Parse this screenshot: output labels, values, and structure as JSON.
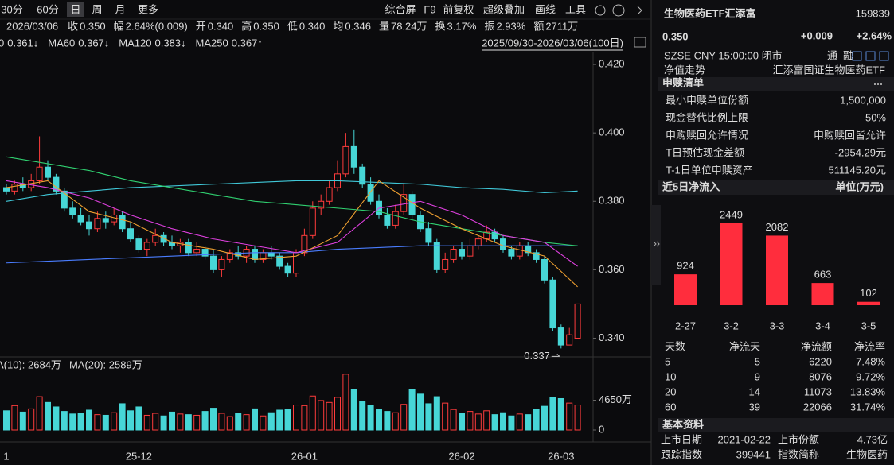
{
  "toolbar": {
    "tabs": [
      "30分",
      "60分",
      "日",
      "周",
      "月",
      "更多"
    ],
    "tools": [
      "综合屏",
      "F9",
      "前复权",
      "超级叠加",
      "画线",
      "工具"
    ]
  },
  "quote_line": {
    "date": "2026/03/06",
    "items": [
      {
        "label": "收",
        "value": "0.350",
        "color": "#ff3c3c"
      },
      {
        "label": "幅",
        "value": "2.64%(0.009)",
        "color": "#ff3c3c"
      },
      {
        "label": "开",
        "value": "0.340",
        "color": "#3fe07a"
      },
      {
        "label": "高",
        "value": "0.350",
        "color": "#ff3c3c"
      },
      {
        "label": "低",
        "value": "0.340",
        "color": "#3fe07a"
      },
      {
        "label": "均",
        "value": "0.346",
        "color": "#ff3c3c"
      },
      {
        "label": "量",
        "value": "78.24万",
        "color": "#e6e6e6"
      },
      {
        "label": "换",
        "value": "3.17%",
        "color": "#e6e6e6"
      },
      {
        "label": "振",
        "value": "2.93%",
        "color": "#e6e6e6"
      },
      {
        "label": "额",
        "value": "2711万",
        "color": "#e6e6e6"
      }
    ]
  },
  "ma_legend": [
    {
      "label": "0",
      "value": "0.361↓",
      "color": "#e040e0"
    },
    {
      "label": "MA60",
      "value": "0.367↓",
      "color": "#30d070"
    },
    {
      "label": "MA120",
      "value": "0.383↓",
      "color": "#40c8d8"
    },
    {
      "label": "MA250",
      "value": "0.367↑",
      "color": "#4a7dff"
    }
  ],
  "range_label": "2025/09/30-2026/03/06(100日)",
  "chart_data": [
    {
      "type": "candlestick",
      "categories": [
        "1",
        null,
        null,
        null,
        null,
        null,
        null,
        null,
        null,
        null,
        null,
        null,
        null,
        null,
        null,
        null,
        "25-12",
        null,
        null,
        null,
        null,
        null,
        null,
        null,
        null,
        null,
        null,
        null,
        null,
        null,
        null,
        null,
        null,
        null,
        null,
        null,
        "26-01",
        null,
        null,
        null,
        null,
        null,
        null,
        null,
        null,
        null,
        null,
        null,
        null,
        null,
        null,
        null,
        null,
        null,
        null,
        "26-02",
        null,
        null,
        null,
        null,
        null,
        null,
        null,
        null,
        null,
        null,
        null,
        "26-03",
        null,
        null
      ],
      "open": [
        0.384,
        0.383,
        0.385,
        0.384,
        0.386,
        0.39,
        0.387,
        0.383,
        0.378,
        0.376,
        0.374,
        0.372,
        0.375,
        0.374,
        0.376,
        0.372,
        0.369,
        0.366,
        0.368,
        0.37,
        0.368,
        0.367,
        0.368,
        0.365,
        0.366,
        0.364,
        0.36,
        0.363,
        0.365,
        0.364,
        0.366,
        0.363,
        0.365,
        0.364,
        0.361,
        0.359,
        0.365,
        0.37,
        0.378,
        0.38,
        0.384,
        0.388,
        0.396,
        0.39,
        0.385,
        0.38,
        0.376,
        0.373,
        0.377,
        0.382,
        0.376,
        0.372,
        0.368,
        0.36,
        0.363,
        0.366,
        0.364,
        0.367,
        0.369,
        0.371,
        0.369,
        0.366,
        0.364,
        0.367,
        0.365,
        0.363,
        0.357,
        0.343,
        0.338,
        0.34
      ],
      "high": [
        0.385,
        0.386,
        0.387,
        0.388,
        0.399,
        0.392,
        0.388,
        0.384,
        0.38,
        0.378,
        0.376,
        0.377,
        0.377,
        0.378,
        0.377,
        0.374,
        0.37,
        0.369,
        0.372,
        0.371,
        0.37,
        0.369,
        0.369,
        0.368,
        0.367,
        0.366,
        0.364,
        0.366,
        0.367,
        0.367,
        0.367,
        0.366,
        0.367,
        0.365,
        0.362,
        0.366,
        0.372,
        0.38,
        0.382,
        0.386,
        0.392,
        0.4,
        0.401,
        0.391,
        0.387,
        0.382,
        0.378,
        0.379,
        0.385,
        0.383,
        0.377,
        0.374,
        0.369,
        0.365,
        0.367,
        0.368,
        0.369,
        0.37,
        0.373,
        0.372,
        0.37,
        0.367,
        0.368,
        0.368,
        0.366,
        0.364,
        0.358,
        0.344,
        0.343,
        0.35
      ],
      "low": [
        0.382,
        0.382,
        0.383,
        0.383,
        0.385,
        0.386,
        0.382,
        0.377,
        0.375,
        0.373,
        0.37,
        0.371,
        0.372,
        0.373,
        0.371,
        0.368,
        0.365,
        0.364,
        0.367,
        0.367,
        0.366,
        0.365,
        0.364,
        0.364,
        0.363,
        0.359,
        0.358,
        0.362,
        0.363,
        0.362,
        0.362,
        0.362,
        0.363,
        0.36,
        0.358,
        0.358,
        0.364,
        0.369,
        0.376,
        0.379,
        0.383,
        0.387,
        0.388,
        0.384,
        0.379,
        0.375,
        0.372,
        0.372,
        0.376,
        0.375,
        0.371,
        0.367,
        0.359,
        0.359,
        0.362,
        0.363,
        0.363,
        0.366,
        0.368,
        0.368,
        0.365,
        0.363,
        0.363,
        0.364,
        0.362,
        0.356,
        0.342,
        0.337,
        0.338,
        0.34
      ],
      "close": [
        0.383,
        0.385,
        0.384,
        0.386,
        0.39,
        0.387,
        0.383,
        0.378,
        0.376,
        0.374,
        0.372,
        0.375,
        0.374,
        0.376,
        0.372,
        0.369,
        0.366,
        0.368,
        0.37,
        0.368,
        0.367,
        0.368,
        0.365,
        0.366,
        0.364,
        0.36,
        0.363,
        0.365,
        0.364,
        0.366,
        0.363,
        0.365,
        0.364,
        0.361,
        0.359,
        0.365,
        0.37,
        0.378,
        0.38,
        0.384,
        0.388,
        0.396,
        0.39,
        0.385,
        0.38,
        0.376,
        0.373,
        0.377,
        0.382,
        0.376,
        0.372,
        0.368,
        0.36,
        0.363,
        0.366,
        0.364,
        0.367,
        0.369,
        0.371,
        0.369,
        0.366,
        0.364,
        0.367,
        0.365,
        0.363,
        0.357,
        0.343,
        0.338,
        0.341,
        0.35
      ],
      "ylim": [
        0.335,
        0.4235
      ],
      "yticks": [
        {
          "value": 0.42,
          "label": "0.420"
        },
        {
          "value": 0.4,
          "label": "0.400"
        },
        {
          "value": 0.38,
          "label": "0.380"
        },
        {
          "value": 0.36,
          "label": "0.360"
        },
        {
          "value": 0.34,
          "label": "0.340"
        }
      ],
      "up_color": "#ff3c3c",
      "down_color": "#47d6d6",
      "annotation": "0.337",
      "ma_lines": [
        {
          "color": "#4a7dff",
          "x": [
            0,
            5,
            10,
            15,
            20,
            25,
            30,
            35,
            40,
            45,
            50,
            55,
            60,
            65,
            69
          ],
          "values": [
            0.362,
            0.3625,
            0.363,
            0.3635,
            0.364,
            0.3645,
            0.365,
            0.365,
            0.366,
            0.3665,
            0.367,
            0.367,
            0.367,
            0.367,
            0.367
          ]
        },
        {
          "color": "#40c8d8",
          "x": [
            0,
            5,
            10,
            15,
            20,
            25,
            30,
            35,
            40,
            45,
            50,
            55,
            60,
            65,
            69
          ],
          "values": [
            0.38,
            0.382,
            0.383,
            0.384,
            0.3845,
            0.385,
            0.3855,
            0.386,
            0.386,
            0.3855,
            0.385,
            0.384,
            0.3835,
            0.3825,
            0.383
          ]
        },
        {
          "color": "#30d070",
          "x": [
            0,
            5,
            10,
            15,
            20,
            25,
            30,
            35,
            40,
            45,
            50,
            55,
            60,
            65,
            69
          ],
          "values": [
            0.393,
            0.391,
            0.389,
            0.386,
            0.384,
            0.382,
            0.38,
            0.379,
            0.378,
            0.377,
            0.374,
            0.372,
            0.37,
            0.368,
            0.367
          ]
        },
        {
          "color": "#e040e0",
          "x": [
            0,
            5,
            10,
            15,
            20,
            25,
            30,
            35,
            40,
            45,
            50,
            55,
            60,
            65,
            69
          ],
          "values": [
            0.386,
            0.384,
            0.381,
            0.376,
            0.372,
            0.369,
            0.367,
            0.365,
            0.368,
            0.378,
            0.38,
            0.376,
            0.37,
            0.368,
            0.361
          ]
        },
        {
          "color": "#f0a030",
          "x": [
            0,
            5,
            10,
            15,
            20,
            25,
            30,
            35,
            40,
            45,
            50,
            55,
            60,
            65,
            69
          ],
          "values": [
            0.384,
            0.386,
            0.377,
            0.374,
            0.368,
            0.366,
            0.363,
            0.364,
            0.37,
            0.386,
            0.378,
            0.372,
            0.367,
            0.364,
            0.355
          ]
        }
      ]
    },
    {
      "type": "bar",
      "legend_items": [
        {
          "label": "A(10): 2684万",
          "color": "#f0a030"
        },
        {
          "label": "MA(20): 2589万",
          "color": "#e040e0"
        }
      ],
      "values": [
        3000,
        3800,
        2800,
        3300,
        5200,
        4300,
        3600,
        2900,
        2500,
        2600,
        3100,
        2400,
        2300,
        2700,
        4100,
        3000,
        3600,
        2300,
        2600,
        2200,
        2800,
        2500,
        2400,
        2300,
        2900,
        3400,
        2600,
        2100,
        2600,
        2400,
        3300,
        2200,
        2700,
        3100,
        3200,
        3900,
        3800,
        5300,
        4600,
        4300,
        5100,
        8700,
        6300,
        4400,
        3900,
        3200,
        2900,
        2700,
        4000,
        6300,
        5600,
        4100,
        5200,
        4200,
        3200,
        2600,
        2900,
        2500,
        3000,
        2400,
        2700,
        2200,
        2500,
        2400,
        3200,
        3700,
        5100,
        4900,
        4200,
        3900
      ],
      "ylim": [
        0,
        9300
      ],
      "yticks": [
        0,
        {
          "value": 4650,
          "label": "4650万"
        }
      ]
    },
    {
      "type": "bar",
      "title": "近5日净流入",
      "unit": "单位(万元)",
      "categories": [
        "2-27",
        "3-2",
        "3-3",
        "3-4",
        "3-5"
      ],
      "values": [
        924,
        2449,
        2082,
        663,
        102
      ],
      "color": "#ff2d3d"
    }
  ],
  "panel": {
    "name": "生物医药ETF汇添富",
    "code": "159839",
    "price": "0.350",
    "change": "+0.009",
    "change_pct": "+2.64%",
    "status": "SZSE  CNY  15:00:00  闭市",
    "tags": [
      "通",
      "融"
    ],
    "nav": {
      "label": "净值走势",
      "value": "汇添富国证生物医药ETF"
    },
    "section": "申赎清单",
    "rows": [
      [
        "最小申赎单位份额",
        "1,500,000"
      ],
      [
        "现金替代比例上限",
        "50%"
      ],
      [
        "申购赎回允许情况",
        "申购赎回皆允许"
      ],
      [
        "T日预估现金差额",
        "-2954.29元"
      ],
      [
        "T-1日单位申赎资产",
        "511145.20元"
      ]
    ],
    "stats": {
      "header": [
        "天数",
        "净流天",
        "净流额",
        "净流率"
      ],
      "rows": [
        [
          "5",
          "5",
          "6220",
          "7.48%"
        ],
        [
          "10",
          "9",
          "8076",
          "9.72%"
        ],
        [
          "20",
          "14",
          "11073",
          "13.83%"
        ],
        [
          "60",
          "39",
          "22066",
          "31.74%"
        ]
      ]
    },
    "basic": {
      "title": "基本资料",
      "rows": [
        [
          "上市日期",
          "2021-02-22",
          "上市份额",
          "4.73亿"
        ],
        [
          "跟踪指数",
          "399441",
          "指数简称",
          "生物医药"
        ]
      ]
    }
  }
}
